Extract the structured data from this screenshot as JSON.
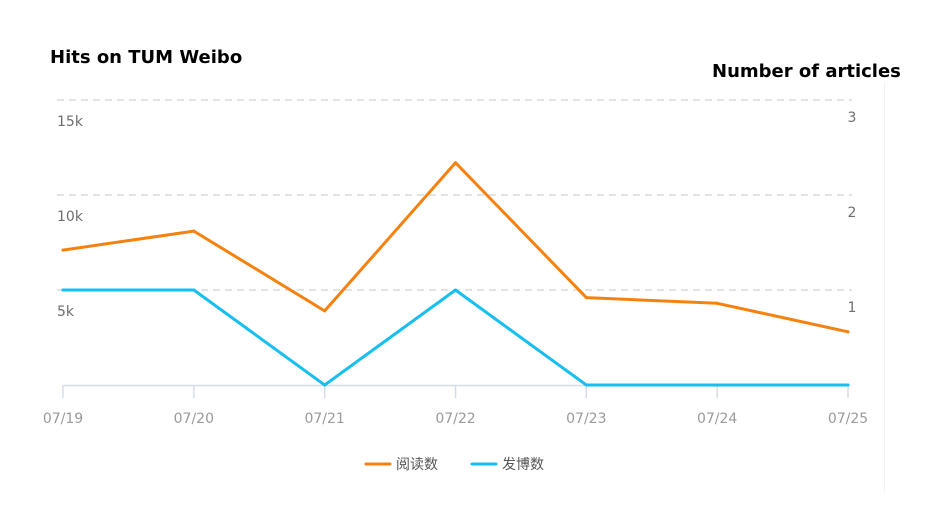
{
  "chart_data": {
    "type": "line",
    "title": "Hits on TUM Weibo",
    "y2label": "Number of articles",
    "categories": [
      "07/19",
      "07/20",
      "07/21",
      "07/22",
      "07/23",
      "07/24",
      "07/25"
    ],
    "y_ticks": [
      "5k",
      "10k",
      "15k"
    ],
    "y2_ticks": [
      "1",
      "2",
      "3"
    ],
    "ylim": [
      0,
      15000
    ],
    "y2lim": [
      0,
      3
    ],
    "grid": true,
    "legend_position": "bottom",
    "series": [
      {
        "name": "阅读数",
        "axis": "left",
        "color": "#f5820f",
        "values": [
          7100,
          8100,
          3900,
          11700,
          4600,
          4300,
          2800
        ]
      },
      {
        "name": "发博数",
        "axis": "right",
        "color": "#16bff0",
        "values": [
          1,
          1,
          0,
          1,
          0,
          0,
          0
        ]
      }
    ]
  }
}
